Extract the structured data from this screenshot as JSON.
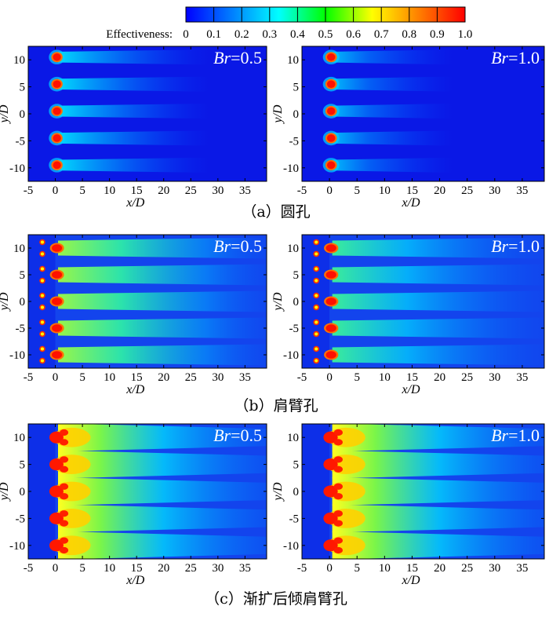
{
  "colorbar": {
    "title": "Effectiveness:",
    "ticks": [
      "0",
      "0.1",
      "0.2",
      "0.3",
      "0.4",
      "0.5",
      "0.6",
      "0.7",
      "0.8",
      "0.9",
      "1.0"
    ],
    "range": [
      0,
      1
    ],
    "colormap": [
      "#0000ff",
      "#0080ff",
      "#00ffff",
      "#00ff00",
      "#ffff00",
      "#ff8000",
      "#ff0000"
    ]
  },
  "axes": {
    "xlabel": "x/D",
    "ylabel": "y/D",
    "xticks": [
      "-5",
      "0",
      "5",
      "10",
      "15",
      "20",
      "25",
      "30",
      "35"
    ],
    "yticks": [
      "10",
      "5",
      "0",
      "-5",
      "-10"
    ]
  },
  "chart_data": [
    {
      "type": "heatmap",
      "row": "a",
      "blowing_ratio_label": "=0.5",
      "hole_y": [
        10.5,
        5.5,
        0.5,
        -4.5,
        -9.5
      ],
      "xlim": [
        -5,
        39
      ],
      "ylim": [
        -12.5,
        12.5
      ]
    },
    {
      "type": "heatmap",
      "row": "a",
      "blowing_ratio_label": "=1.0",
      "hole_y": [
        10.5,
        5.5,
        0.5,
        -4.5,
        -9.5
      ],
      "xlim": [
        -5,
        39
      ],
      "ylim": [
        -12.5,
        12.5
      ]
    },
    {
      "type": "heatmap",
      "row": "b",
      "blowing_ratio_label": "=0.5",
      "hole_y": [
        10,
        5,
        0,
        -5,
        -10
      ],
      "xlim": [
        -5,
        39
      ],
      "ylim": [
        -12.5,
        12.5
      ]
    },
    {
      "type": "heatmap",
      "row": "b",
      "blowing_ratio_label": "=1.0",
      "hole_y": [
        10,
        5,
        0,
        -5,
        -10
      ],
      "xlim": [
        -5,
        39
      ],
      "ylim": [
        -12.5,
        12.5
      ]
    },
    {
      "type": "heatmap",
      "row": "c",
      "blowing_ratio_label": "=0.5",
      "hole_y": [
        10,
        5,
        0,
        -5,
        -10
      ],
      "xlim": [
        -5,
        39
      ],
      "ylim": [
        -12.5,
        12.5
      ]
    },
    {
      "type": "heatmap",
      "row": "c",
      "blowing_ratio_label": "=1.0",
      "hole_y": [
        10,
        5,
        0,
        -5,
        -10
      ],
      "xlim": [
        -5,
        39
      ],
      "ylim": [
        -12.5,
        12.5
      ]
    }
  ],
  "br_symbol": "Br",
  "captions": [
    "（a）圆孔",
    "（b）肩臂孔",
    "（c）渐扩后倾肩臂孔"
  ]
}
